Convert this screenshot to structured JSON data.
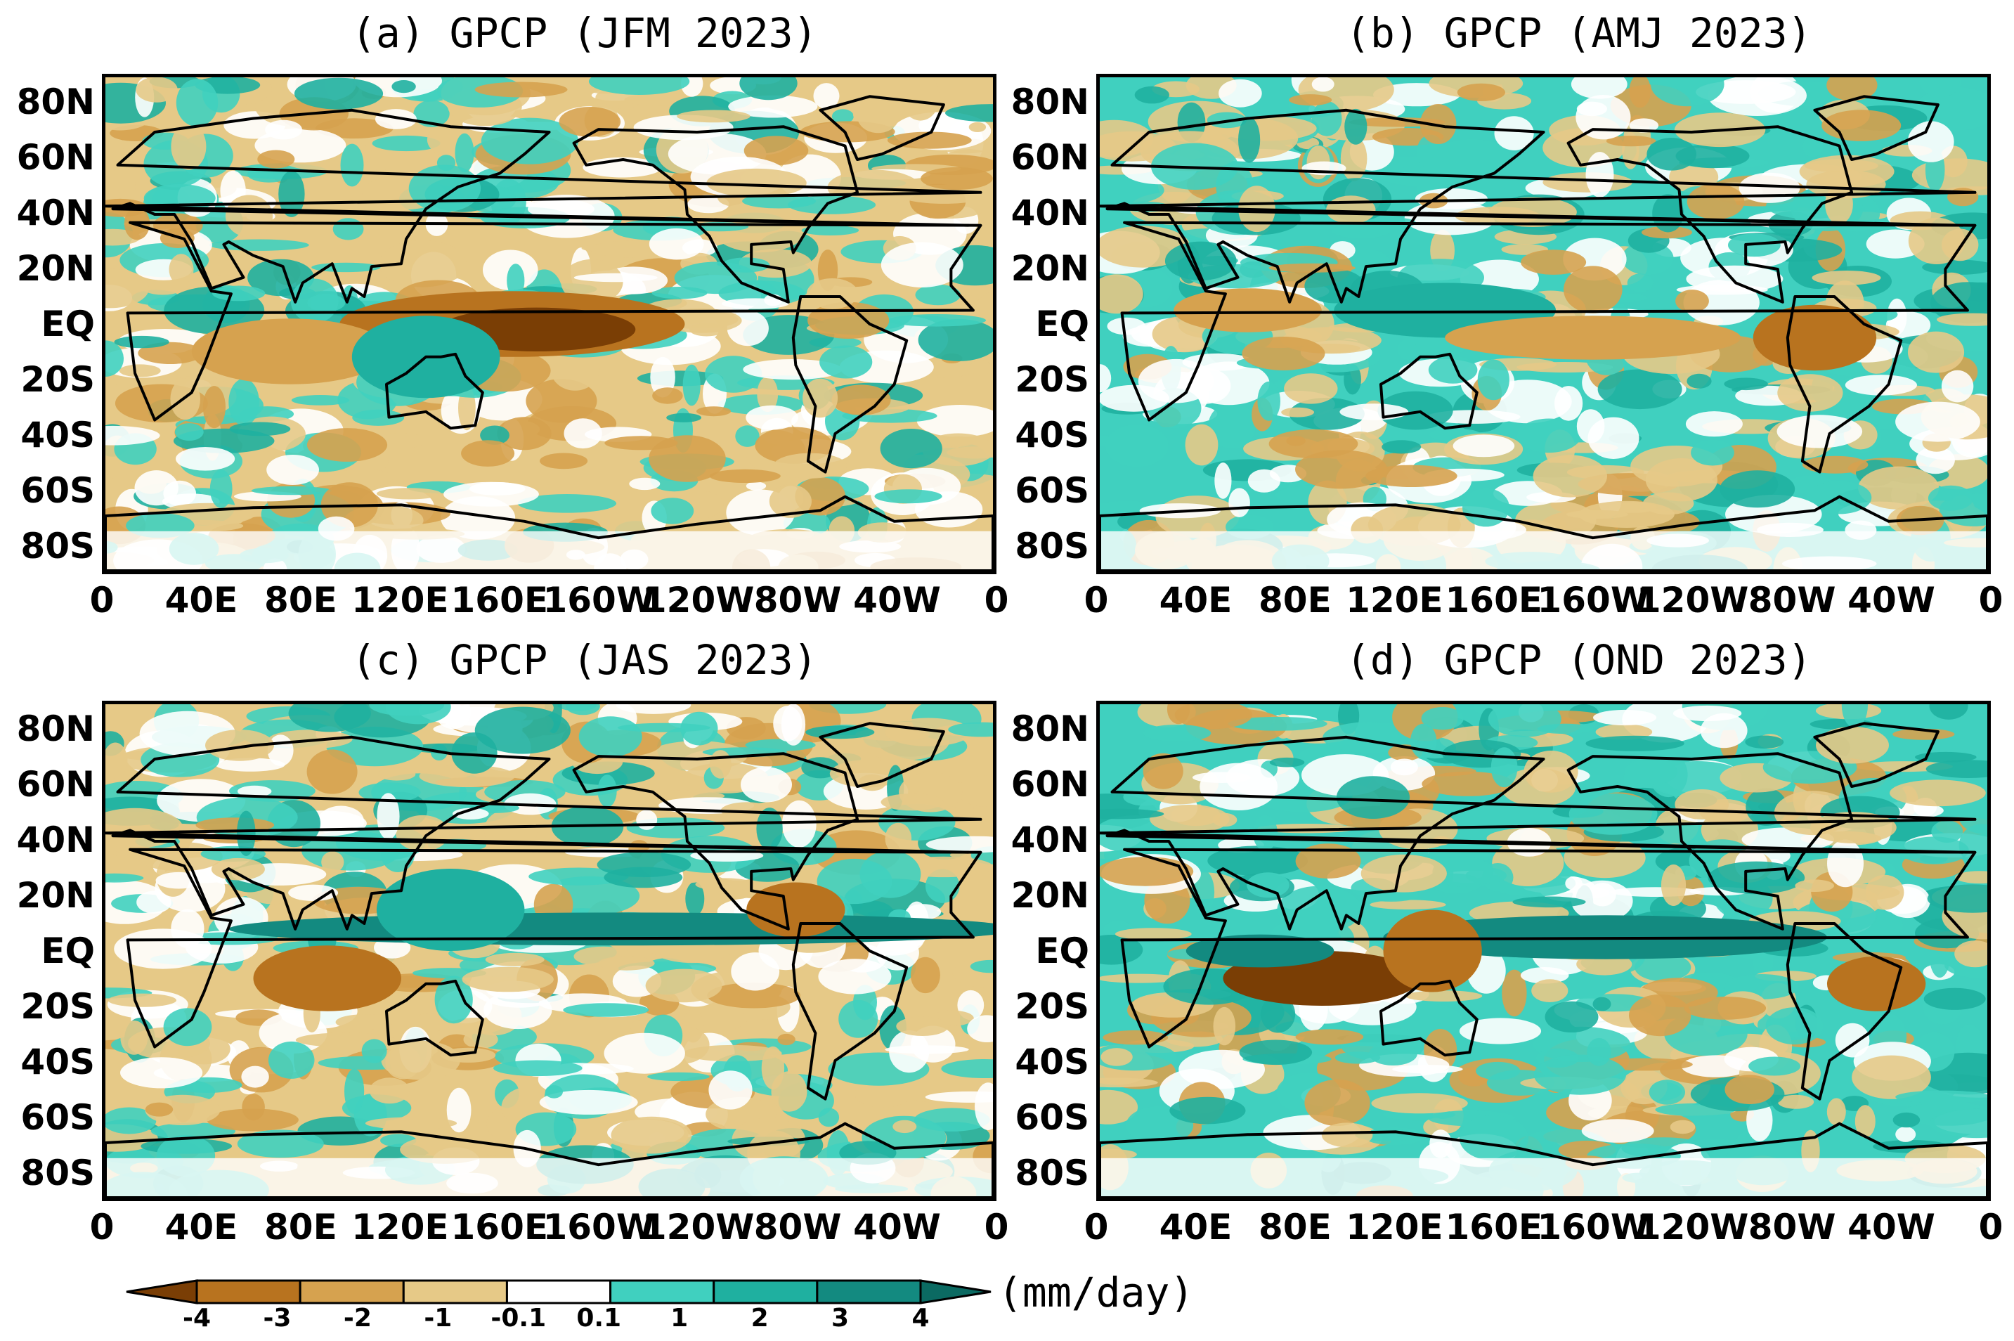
{
  "panels": [
    {
      "title": "(a) GPCP (JFM 2023)"
    },
    {
      "title": "(b) GPCP (AMJ 2023)"
    },
    {
      "title": "(c) GPCP (JAS 2023)"
    },
    {
      "title": "(d) GPCP (OND 2023)"
    }
  ],
  "y_ticks": [
    "80N",
    "60N",
    "40N",
    "20N",
    "EQ",
    "20S",
    "40S",
    "60S",
    "80S"
  ],
  "x_ticks": [
    "0",
    "40E",
    "80E",
    "120E",
    "160E",
    "160W",
    "120W",
    "80W",
    "40W",
    "0"
  ],
  "colorbar": {
    "labels": [
      "-4",
      "-3",
      "-2",
      "-1",
      "-0.1",
      "0.1",
      "1",
      "2",
      "3",
      "4"
    ],
    "colors": [
      "#7a3e05",
      "#b8731f",
      "#d6a24f",
      "#e6c987",
      "#ffffff",
      "#40d0bf",
      "#1fb0a0",
      "#138a80",
      "#0b6a62"
    ],
    "units": "(mm/day)"
  },
  "palette": {
    "strong_dry": "#7a3e05",
    "dry": "#b8731f",
    "moderate_dry": "#d6a24f",
    "light_dry": "#e6c987",
    "neutral": "#ffffff",
    "light_wet": "#40d0bf",
    "wet": "#1fb0a0",
    "very_wet": "#138a80",
    "strong_wet": "#0b6a62"
  }
}
